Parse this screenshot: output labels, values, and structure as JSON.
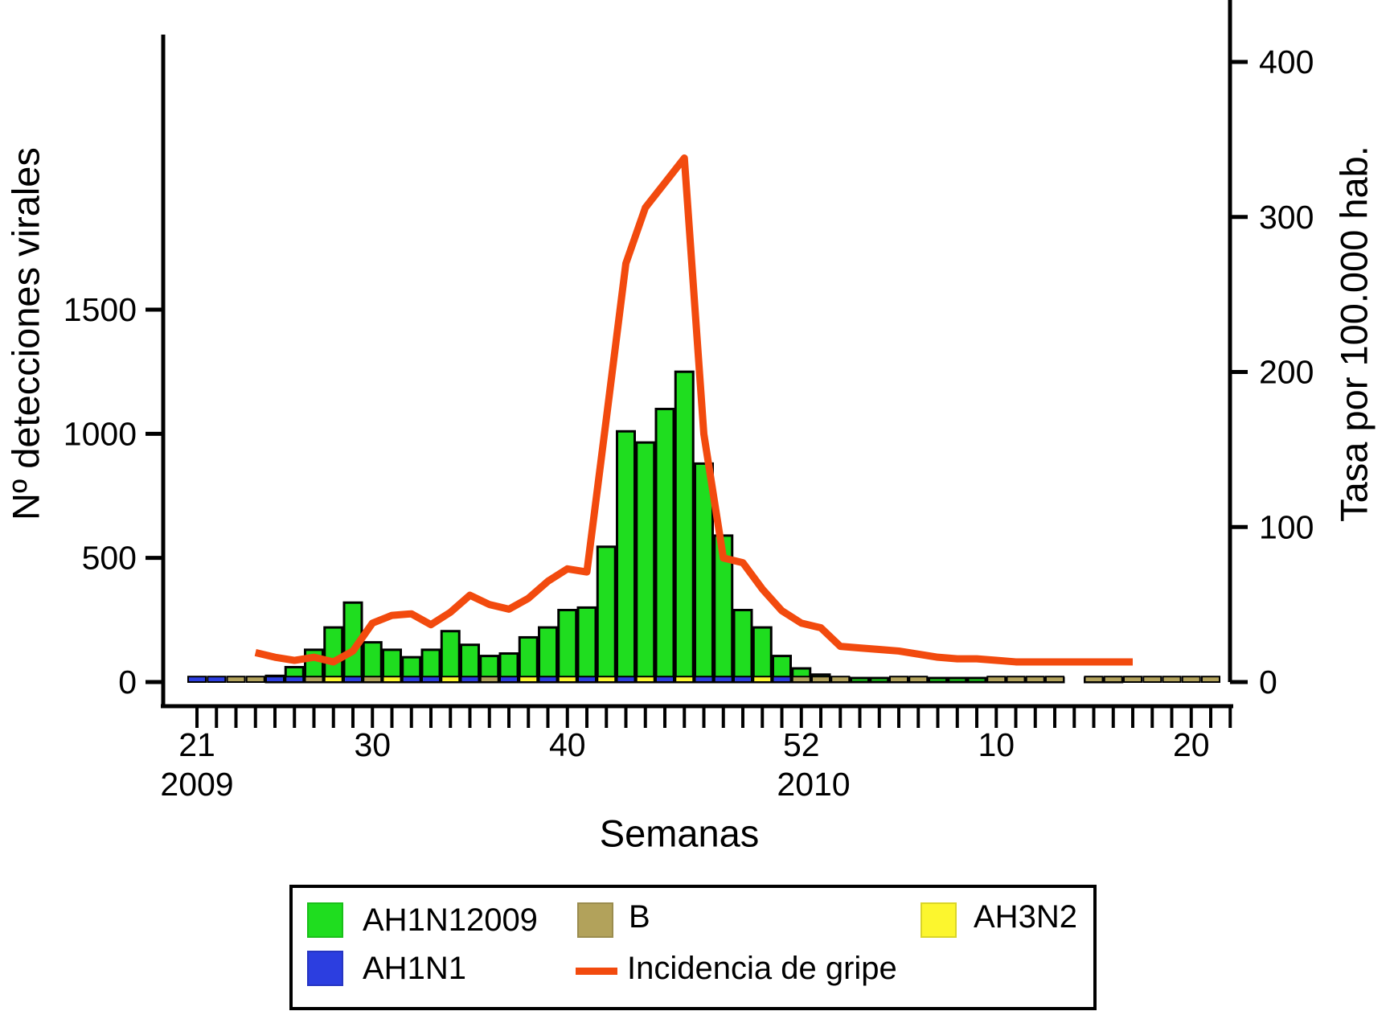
{
  "axes": {
    "left": {
      "title": "Nº detecciones virales",
      "ticks": [
        0,
        500,
        1000,
        1500
      ]
    },
    "right": {
      "title": "Tasa por 100.000 hab.",
      "ticks": [
        0,
        100,
        200,
        300,
        400
      ]
    },
    "x": {
      "title": "Semanas",
      "labeled_ticks": [
        {
          "label": "21",
          "index": 0
        },
        {
          "label": "30",
          "index": 9
        },
        {
          "label": "40",
          "index": 19
        },
        {
          "label": "52",
          "index": 31
        },
        {
          "label": "10",
          "index": 41
        },
        {
          "label": "20",
          "index": 51
        }
      ],
      "year_left": "2009",
      "year_right": "2010"
    }
  },
  "legend": {
    "items": [
      {
        "label": "AH1N12009",
        "swatch": "box",
        "color": "#1fdd1f"
      },
      {
        "label": "B",
        "swatch": "box",
        "color": "#b2a25b"
      },
      {
        "label": "AH3N2",
        "swatch": "box",
        "color": "#fcf62e"
      },
      {
        "label": "AH1N1",
        "swatch": "box",
        "color": "#2c3ee0"
      },
      {
        "label": "Incidencia de gripe",
        "swatch": "line",
        "color": "#f24a0e"
      }
    ]
  },
  "chart_data": {
    "type": "combo-bar-line",
    "xlabel": "Semanas",
    "ylabel_left": "Nº detecciones virales",
    "ylabel_right": "Tasa por 100.000 hab.",
    "left_ylim": [
      0,
      2600
    ],
    "right_ylim": [
      0,
      440
    ],
    "grid": false,
    "x_weeks": [
      "2009-21",
      "2009-22",
      "2009-23",
      "2009-24",
      "2009-25",
      "2009-26",
      "2009-27",
      "2009-28",
      "2009-29",
      "2009-30",
      "2009-31",
      "2009-32",
      "2009-33",
      "2009-34",
      "2009-35",
      "2009-36",
      "2009-37",
      "2009-38",
      "2009-39",
      "2009-40",
      "2009-41",
      "2009-42",
      "2009-43",
      "2009-44",
      "2009-45",
      "2009-46",
      "2009-47",
      "2009-48",
      "2009-49",
      "2009-50",
      "2009-51",
      "2009-52",
      "2010-1",
      "2010-2",
      "2010-3",
      "2010-4",
      "2010-5",
      "2010-6",
      "2010-7",
      "2010-8",
      "2010-9",
      "2010-10",
      "2010-11",
      "2010-12",
      "2010-13",
      "2010-14",
      "2010-15",
      "2010-16",
      "2010-17",
      "2010-18",
      "2010-19",
      "2010-20",
      "2010-21",
      "2010-22"
    ],
    "series": [
      {
        "name": "AH1N12009",
        "type": "bar",
        "yaxis": "left",
        "color": "#1fdd1f",
        "values": [
          0,
          0,
          0,
          0,
          25,
          60,
          130,
          220,
          320,
          160,
          130,
          100,
          130,
          205,
          150,
          105,
          115,
          180,
          220,
          290,
          300,
          545,
          1010,
          965,
          1100,
          1250,
          880,
          590,
          290,
          220,
          105,
          55,
          30,
          18,
          10,
          6,
          4,
          3,
          5,
          5,
          3,
          2,
          2,
          1,
          1,
          0,
          1,
          1,
          0,
          0,
          0,
          0,
          0,
          0
        ]
      },
      {
        "name": "AH1N1",
        "type": "bar",
        "yaxis": "left",
        "color": "#2c3ee0",
        "values": [
          22,
          22,
          0,
          0,
          22,
          22,
          0,
          0,
          22,
          0,
          0,
          22,
          22,
          0,
          22,
          0,
          22,
          0,
          22,
          0,
          22,
          0,
          22,
          0,
          22,
          0,
          22,
          22,
          22,
          0,
          22,
          0,
          0,
          0,
          0,
          0,
          0,
          0,
          0,
          0,
          0,
          0,
          0,
          0,
          0,
          0,
          0,
          0,
          0,
          0,
          0,
          0,
          0,
          0
        ]
      },
      {
        "name": "B",
        "type": "bar",
        "yaxis": "left",
        "color": "#b2a25b",
        "values": [
          0,
          0,
          22,
          22,
          0,
          0,
          22,
          0,
          0,
          22,
          0,
          0,
          0,
          0,
          0,
          22,
          0,
          0,
          0,
          0,
          0,
          0,
          0,
          0,
          0,
          0,
          0,
          0,
          0,
          0,
          0,
          22,
          22,
          22,
          0,
          0,
          22,
          22,
          0,
          0,
          0,
          22,
          22,
          22,
          22,
          0,
          22,
          22,
          22,
          22,
          22,
          22,
          22,
          0
        ]
      },
      {
        "name": "AH3N2",
        "type": "bar",
        "yaxis": "left",
        "color": "#fcf62e",
        "values": [
          0,
          0,
          0,
          0,
          0,
          0,
          0,
          22,
          0,
          0,
          22,
          0,
          0,
          22,
          0,
          0,
          0,
          22,
          0,
          22,
          0,
          22,
          0,
          22,
          0,
          22,
          0,
          0,
          0,
          22,
          0,
          0,
          0,
          0,
          0,
          0,
          0,
          0,
          0,
          0,
          0,
          0,
          0,
          0,
          0,
          0,
          0,
          0,
          0,
          0,
          0,
          0,
          0,
          0
        ]
      },
      {
        "name": "Incidencia de gripe",
        "type": "line",
        "yaxis": "right",
        "color": "#f24a0e",
        "values": [
          null,
          null,
          null,
          19,
          16,
          14,
          16,
          13,
          20,
          38,
          43,
          44,
          37,
          45,
          56,
          50,
          47,
          54,
          65,
          73,
          71,
          170,
          270,
          306,
          322,
          338,
          160,
          80,
          77,
          60,
          46,
          38,
          35,
          23,
          22,
          21,
          20,
          18,
          16,
          15,
          15,
          14,
          13,
          13,
          13,
          13,
          13,
          13,
          13,
          null,
          null,
          null,
          null,
          null
        ]
      }
    ]
  }
}
